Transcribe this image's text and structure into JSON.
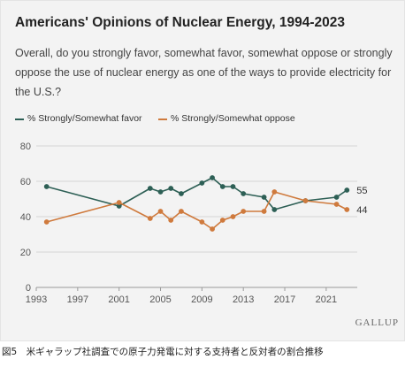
{
  "caption": "図5　米ギャラップ社調査での原子力発電に対する支持者と反対者の割合推移",
  "brand": "GALLUP",
  "colors": {
    "background": "#f3f3f3",
    "grid": "#d4d4d4",
    "axis_text": "#555555",
    "favor": "#2d5f55",
    "oppose": "#cf7a3d"
  },
  "chart_data": {
    "type": "line",
    "title": "Americans' Opinions of Nuclear Energy, 1994-2023",
    "subtitle": "Overall, do you strongly favor, somewhat favor, somewhat oppose or strongly oppose the use of nuclear energy as one of the ways to provide electricity for the U.S.?",
    "xlabel": "",
    "ylabel": "",
    "xlim": [
      1993,
      2024
    ],
    "ylim": [
      0,
      80
    ],
    "x_ticks": [
      1993,
      1997,
      2001,
      2005,
      2009,
      2013,
      2017,
      2021
    ],
    "y_ticks": [
      0,
      20,
      40,
      60,
      80
    ],
    "grid": "horizontal",
    "legend": "top-left",
    "series": [
      {
        "name": "% Strongly/Somewhat favor",
        "color": "#2d5f55",
        "end_label": "55",
        "points": [
          [
            1994,
            57
          ],
          [
            2001,
            46
          ],
          [
            2004,
            56
          ],
          [
            2005,
            54
          ],
          [
            2006,
            56
          ],
          [
            2007,
            53
          ],
          [
            2009,
            59
          ],
          [
            2010,
            62
          ],
          [
            2011,
            57
          ],
          [
            2012,
            57
          ],
          [
            2013,
            53
          ],
          [
            2015,
            51
          ],
          [
            2016,
            44
          ],
          [
            2019,
            49
          ],
          [
            2022,
            51
          ],
          [
            2023,
            55
          ]
        ]
      },
      {
        "name": "% Strongly/Somewhat oppose",
        "color": "#cf7a3d",
        "end_label": "44",
        "points": [
          [
            1994,
            37
          ],
          [
            2001,
            48
          ],
          [
            2004,
            39
          ],
          [
            2005,
            43
          ],
          [
            2006,
            38
          ],
          [
            2007,
            43
          ],
          [
            2009,
            37
          ],
          [
            2010,
            33
          ],
          [
            2011,
            38
          ],
          [
            2012,
            40
          ],
          [
            2013,
            43
          ],
          [
            2015,
            43
          ],
          [
            2016,
            54
          ],
          [
            2019,
            49
          ],
          [
            2022,
            47
          ],
          [
            2023,
            44
          ]
        ]
      }
    ]
  }
}
